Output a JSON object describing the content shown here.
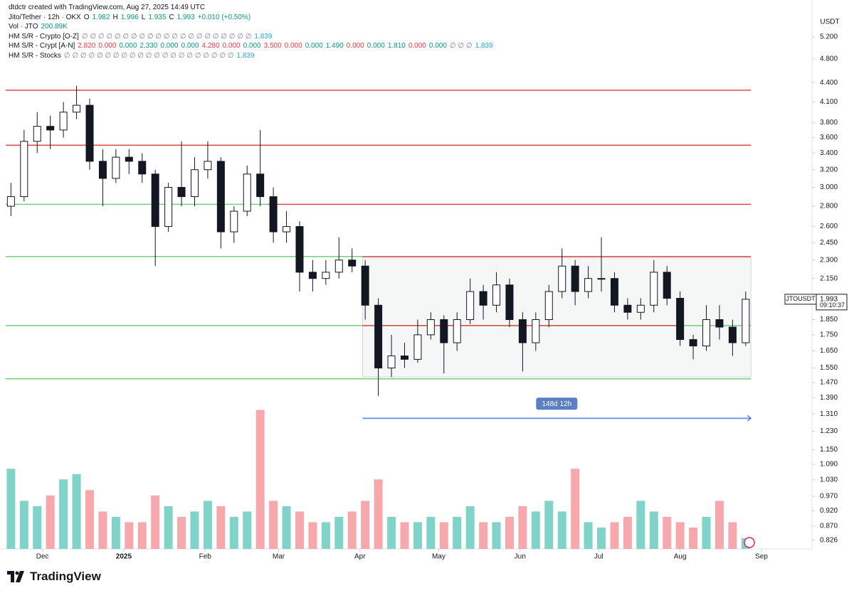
{
  "header": {
    "credit": "dtdctr created with TradingView.com, Aug 27, 2025 14:49 UTC",
    "symbol": "Jito/Tether · 12h · OKX",
    "quote": [
      "O",
      "1.982",
      "H",
      "1.996",
      "L",
      "1.935",
      "C",
      "1.993"
    ],
    "change": "+0.010 (+0.50%)"
  },
  "indicators": [
    {
      "name": "Vol · JTO",
      "items": [
        "200.89K"
      ],
      "colors": [
        "#089981"
      ]
    },
    {
      "name": "HM S/R - Crypto [O-Z]",
      "items": [
        "∅ ∅ ∅ ∅ ∅ ∅ ∅ ∅ ∅ ∅ ∅ ∅ ∅ ∅ ∅ ∅ ∅ ∅ ∅ ∅ ∅",
        "1.839"
      ],
      "colors": [
        "#787b86",
        "#29a3e0"
      ]
    },
    {
      "name": "HM S/R - Crypt [A-N]",
      "items": [
        "2.820",
        "0.000",
        "0.000",
        "2.330",
        "0.000",
        "0.000",
        "4.280",
        "0.000",
        "0.000",
        "3.500",
        "0.000",
        "0.000",
        "1.490",
        "0.000",
        "0.000",
        "1.810",
        "0.000",
        "0.000",
        "∅ ∅ ∅",
        "1.839"
      ],
      "colors": [
        "#f23645",
        "#f23645",
        "#089981",
        "#089981",
        "#089981",
        "#089981",
        "#f23645",
        "#f23645",
        "#089981",
        "#f23645",
        "#f23645",
        "#089981",
        "#089981",
        "#f23645",
        "#089981",
        "#089981",
        "#f23645",
        "#089981",
        "#787b86",
        "#29a3e0"
      ]
    },
    {
      "name": "HM S/R - Stocks",
      "items": [
        "∅ ∅ ∅ ∅ ∅ ∅ ∅ ∅ ∅ ∅ ∅ ∅ ∅ ∅ ∅ ∅ ∅ ∅ ∅ ∅ ∅",
        "1.839"
      ],
      "colors": [
        "#787b86",
        "#29a3e0"
      ]
    }
  ],
  "chart_data": {
    "type": "candlestick",
    "ylabel": "USDT",
    "log_scale": true,
    "ylim": [
      0.8,
      5.65
    ],
    "yticks": [
      {
        "value": 5.2,
        "label": "5.200"
      },
      {
        "value": 4.8,
        "label": "4.800"
      },
      {
        "value": 4.4,
        "label": "4.400"
      },
      {
        "value": 4.1,
        "label": "4.100"
      },
      {
        "value": 3.8,
        "label": "3.800"
      },
      {
        "value": 3.6,
        "label": "3.600"
      },
      {
        "value": 3.4,
        "label": "3.400"
      },
      {
        "value": 3.2,
        "label": "3.200"
      },
      {
        "value": 3.0,
        "label": "3.000"
      },
      {
        "value": 2.8,
        "label": "2.800"
      },
      {
        "value": 2.6,
        "label": "2.600"
      },
      {
        "value": 2.45,
        "label": "2.450"
      },
      {
        "value": 2.3,
        "label": "2.300"
      },
      {
        "value": 2.15,
        "label": "2.150"
      },
      {
        "value": 1.85,
        "label": "1.850"
      },
      {
        "value": 1.75,
        "label": "1.750"
      },
      {
        "value": 1.65,
        "label": "1.650"
      },
      {
        "value": 1.55,
        "label": "1.550"
      },
      {
        "value": 1.47,
        "label": "1.470"
      },
      {
        "value": 1.39,
        "label": "1.390"
      },
      {
        "value": 1.31,
        "label": "1.310"
      },
      {
        "value": 1.23,
        "label": "1.230"
      },
      {
        "value": 1.15,
        "label": "1.150"
      },
      {
        "value": 1.09,
        "label": "1.090"
      },
      {
        "value": 1.03,
        "label": "1.030"
      },
      {
        "value": 0.97,
        "label": "0.970"
      },
      {
        "value": 0.92,
        "label": "0.920"
      },
      {
        "value": 0.87,
        "label": "0.870"
      },
      {
        "value": 0.826,
        "label": "0.826"
      }
    ],
    "xlim": [
      0,
      307
    ],
    "xticks": [
      {
        "value": 14,
        "label": "Dec"
      },
      {
        "value": 45,
        "label": "2025"
      },
      {
        "value": 76,
        "label": "Feb"
      },
      {
        "value": 104,
        "label": "Mar"
      },
      {
        "value": 135,
        "label": "Apr"
      },
      {
        "value": 165,
        "label": "May"
      },
      {
        "value": 196,
        "label": "Jun"
      },
      {
        "value": 226,
        "label": "Jul"
      },
      {
        "value": 257,
        "label": "Aug"
      },
      {
        "value": 288,
        "label": "Sep"
      }
    ],
    "x": [
      2,
      7,
      12,
      17,
      22,
      27,
      32,
      37,
      42,
      47,
      52,
      57,
      62,
      67,
      72,
      77,
      82,
      87,
      92,
      97,
      102,
      107,
      112,
      117,
      122,
      127,
      132,
      137,
      142,
      147,
      152,
      157,
      162,
      167,
      172,
      177,
      182,
      187,
      192,
      197,
      202,
      207,
      212,
      217,
      222,
      227,
      232,
      237,
      242,
      247,
      252,
      257,
      262,
      267,
      272,
      277,
      282
    ],
    "ohlc": [
      [
        2.8,
        3.05,
        2.7,
        2.9
      ],
      [
        2.9,
        3.7,
        2.85,
        3.55
      ],
      [
        3.55,
        3.95,
        3.4,
        3.75
      ],
      [
        3.75,
        3.9,
        3.45,
        3.7
      ],
      [
        3.7,
        4.1,
        3.6,
        3.95
      ],
      [
        3.95,
        4.35,
        3.85,
        4.05
      ],
      [
        4.05,
        4.15,
        3.2,
        3.3
      ],
      [
        3.3,
        3.45,
        2.8,
        3.1
      ],
      [
        3.1,
        3.45,
        3.05,
        3.35
      ],
      [
        3.35,
        3.45,
        3.15,
        3.3
      ],
      [
        3.3,
        3.4,
        3.05,
        3.15
      ],
      [
        3.15,
        3.2,
        2.25,
        2.6
      ],
      [
        2.6,
        3.05,
        2.55,
        3.0
      ],
      [
        3.0,
        3.55,
        2.8,
        2.9
      ],
      [
        2.9,
        3.35,
        2.8,
        3.2
      ],
      [
        3.2,
        3.55,
        3.1,
        3.3
      ],
      [
        3.3,
        3.35,
        2.4,
        2.55
      ],
      [
        2.55,
        2.8,
        2.45,
        2.75
      ],
      [
        2.75,
        3.25,
        2.7,
        3.15
      ],
      [
        3.15,
        3.7,
        2.8,
        2.9
      ],
      [
        2.9,
        3.0,
        2.45,
        2.55
      ],
      [
        2.55,
        2.75,
        2.45,
        2.6
      ],
      [
        2.6,
        2.65,
        2.05,
        2.2
      ],
      [
        2.2,
        2.3,
        2.05,
        2.15
      ],
      [
        2.15,
        2.3,
        2.1,
        2.2
      ],
      [
        2.2,
        2.5,
        2.15,
        2.3
      ],
      [
        2.3,
        2.4,
        2.2,
        2.25
      ],
      [
        2.25,
        2.3,
        1.85,
        1.95
      ],
      [
        1.95,
        2.0,
        1.4,
        1.55
      ],
      [
        1.55,
        1.75,
        1.5,
        1.62
      ],
      [
        1.62,
        1.7,
        1.55,
        1.6
      ],
      [
        1.6,
        1.85,
        1.58,
        1.75
      ],
      [
        1.75,
        1.9,
        1.72,
        1.85
      ],
      [
        1.85,
        1.88,
        1.52,
        1.7
      ],
      [
        1.7,
        1.9,
        1.65,
        1.85
      ],
      [
        1.85,
        2.15,
        1.82,
        2.05
      ],
      [
        2.05,
        2.1,
        1.85,
        1.95
      ],
      [
        1.95,
        2.2,
        1.9,
        2.1
      ],
      [
        2.1,
        2.15,
        1.8,
        1.85
      ],
      [
        1.85,
        1.9,
        1.53,
        1.7
      ],
      [
        1.7,
        1.9,
        1.65,
        1.85
      ],
      [
        1.85,
        2.1,
        1.8,
        2.05
      ],
      [
        2.05,
        2.4,
        2.0,
        2.25
      ],
      [
        2.25,
        2.3,
        1.95,
        2.05
      ],
      [
        2.05,
        2.25,
        2.0,
        2.15
      ],
      [
        2.15,
        2.5,
        2.05,
        2.15
      ],
      [
        2.15,
        2.2,
        1.9,
        1.95
      ],
      [
        1.95,
        2.0,
        1.85,
        1.9
      ],
      [
        1.9,
        2.0,
        1.85,
        1.95
      ],
      [
        1.95,
        2.3,
        1.9,
        2.2
      ],
      [
        2.2,
        2.25,
        1.95,
        2.0
      ],
      [
        2.0,
        2.05,
        1.68,
        1.72
      ],
      [
        1.72,
        1.75,
        1.6,
        1.68
      ],
      [
        1.68,
        1.95,
        1.65,
        1.85
      ],
      [
        1.85,
        1.95,
        1.72,
        1.8
      ],
      [
        1.8,
        1.85,
        1.62,
        1.7
      ],
      [
        1.7,
        2.05,
        1.68,
        1.993
      ]
    ],
    "volume": [
      1500,
      900,
      800,
      1000,
      1300,
      1400,
      1100,
      700,
      600,
      500,
      500,
      1000,
      800,
      600,
      700,
      900,
      800,
      600,
      700,
      2600,
      900,
      800,
      700,
      500,
      500,
      600,
      700,
      900,
      1300,
      600,
      500,
      500,
      600,
      500,
      600,
      800,
      500,
      500,
      600,
      800,
      700,
      900,
      700,
      1500,
      500,
      400,
      500,
      600,
      900,
      700,
      600,
      500,
      400,
      600,
      900,
      500,
      200.89
    ],
    "y2lim": [
      0,
      10000
    ],
    "up_color": "#ffffff",
    "down_color": "#131722",
    "vol_up_color": "#7fd3c9",
    "vol_down_color": "#f7a8ad",
    "levels": [
      {
        "value": 4.28,
        "color": "#e0474c",
        "xlim": [
          0,
          284
        ]
      },
      {
        "value": 3.5,
        "color": "#e0474c",
        "xlim": [
          0,
          284
        ]
      },
      {
        "value": 2.82,
        "color": "#6fcf7a",
        "xlim": [
          0,
          100
        ]
      },
      {
        "value": 2.82,
        "color": "#e0474c",
        "xlim": [
          100,
          284
        ]
      },
      {
        "value": 2.33,
        "color": "#6fcf7a",
        "xlim": [
          0,
          136
        ]
      },
      {
        "value": 2.33,
        "color": "#e0474c",
        "xlim": [
          136,
          284
        ]
      },
      {
        "value": 1.81,
        "color": "#6fcf7a",
        "xlim": [
          0,
          284
        ]
      },
      {
        "value": 1.81,
        "color": "#e0474c",
        "xlim": [
          136,
          257
        ]
      },
      {
        "value": 1.49,
        "color": "#6fcf7a",
        "xlim": [
          0,
          284
        ]
      }
    ],
    "range_box": {
      "ylim": [
        1.5,
        2.32
      ],
      "xlim": [
        136,
        284
      ]
    },
    "measure": {
      "label": "148d 12h",
      "value": 1.29,
      "xlim": [
        136,
        284
      ]
    },
    "price_tag": {
      "symbol": "JTOUSDT",
      "price": "1.993",
      "countdown": "09:10:37"
    }
  },
  "footer": {
    "brand": "TradingView"
  }
}
